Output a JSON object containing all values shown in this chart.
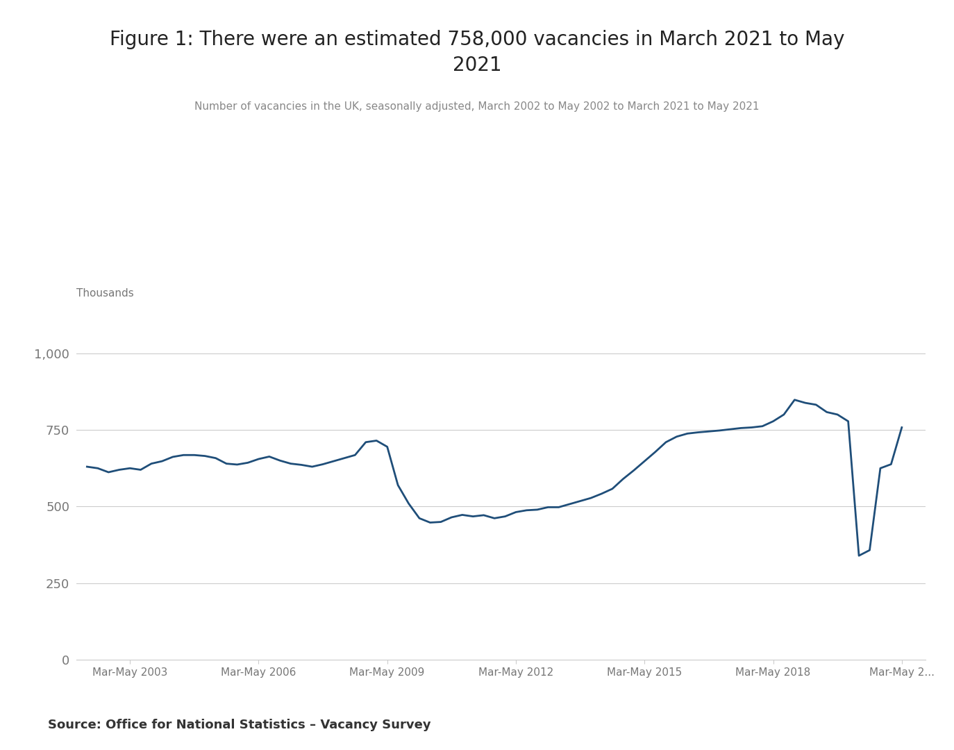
{
  "title": "Figure 1: There were an estimated 758,000 vacancies in March 2021 to May\n2021",
  "subtitle": "Number of vacancies in the UK, seasonally adjusted, March 2002 to May 2002 to March 2021 to May 2021",
  "ylabel_text": "Thousands",
  "source_text": "Source: Office for National Statistics – Vacancy Survey",
  "line_color": "#1f4e79",
  "background_color": "#ffffff",
  "grid_color": "#cccccc",
  "axis_label_color": "#777777",
  "title_color": "#222222",
  "subtitle_color": "#888888",
  "ylim": [
    0,
    1100
  ],
  "yticks": [
    0,
    250,
    500,
    750,
    1000
  ],
  "xtick_labels": [
    "Mar-May 2003",
    "Mar-May 2006",
    "Mar-May 2009",
    "Mar-May 2012",
    "Mar-May 2015",
    "Mar-May 2018",
    "Mar-May 2..."
  ],
  "xtick_years": [
    2003.25,
    2006.25,
    2009.25,
    2012.25,
    2015.25,
    2018.25,
    2021.25
  ],
  "xlim": [
    2002.0,
    2021.8
  ],
  "y_vals": [
    630,
    625,
    612,
    620,
    625,
    620,
    640,
    648,
    662,
    668,
    668,
    665,
    658,
    640,
    637,
    643,
    655,
    663,
    650,
    640,
    636,
    630,
    638,
    648,
    658,
    668,
    710,
    715,
    695,
    570,
    510,
    462,
    448,
    450,
    465,
    473,
    468,
    472,
    462,
    468,
    482,
    488,
    490,
    498,
    498,
    508,
    518,
    528,
    542,
    558,
    590,
    618,
    648,
    678,
    710,
    728,
    738,
    742,
    745,
    748,
    752,
    756,
    758,
    762,
    778,
    800,
    848,
    838,
    832,
    808,
    800,
    778,
    340,
    358,
    625,
    638,
    758
  ]
}
